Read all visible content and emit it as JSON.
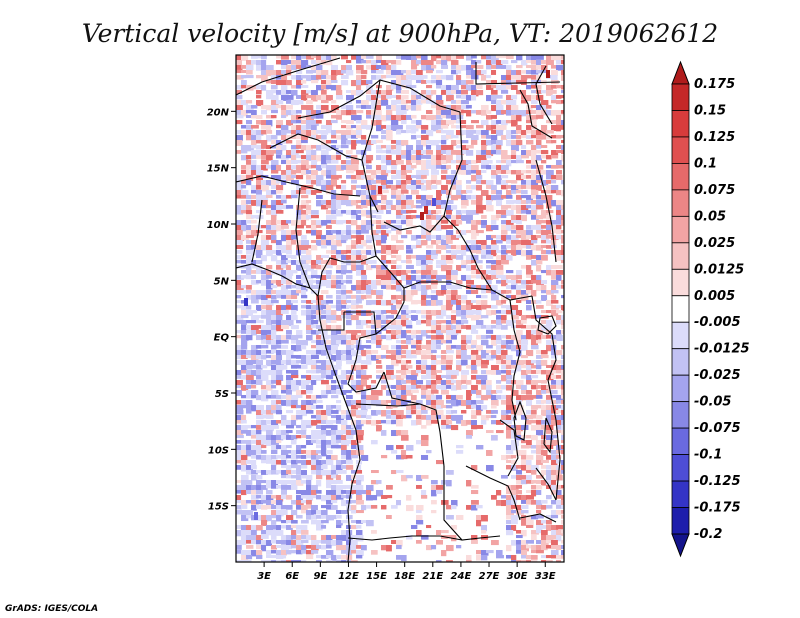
{
  "chart_data": {
    "type": "heatmap",
    "title": "Vertical velocity [m/s] at 900hPa, VT: 2019062612",
    "xlabel": "",
    "ylabel": "",
    "x_ticks": [
      "3E",
      "6E",
      "9E",
      "12E",
      "15E",
      "18E",
      "21E",
      "24E",
      "27E",
      "30E",
      "33E"
    ],
    "y_ticks": [
      "20N",
      "15N",
      "10N",
      "5N",
      "EQ",
      "5S",
      "10S",
      "15S"
    ],
    "lon_range": [
      0,
      35
    ],
    "lat_range": [
      -20,
      25
    ],
    "colorbar_levels": [
      "0.175",
      "0.15",
      "0.125",
      "0.1",
      "0.075",
      "0.05",
      "0.025",
      "0.0125",
      "0.005",
      "-0.005",
      "-0.0125",
      "-0.025",
      "-0.05",
      "-0.075",
      "-0.1",
      "-0.125",
      "-0.175",
      "-0.2"
    ],
    "colorbar_colors": [
      "#b01c1c",
      "#c42828",
      "#d83c3c",
      "#e05050",
      "#e66a6a",
      "#ec8686",
      "#f2a4a4",
      "#f6c2c2",
      "#fadcdc",
      "#ffffff",
      "#dcdcfa",
      "#c2c2f4",
      "#a4a4ee",
      "#8888e6",
      "#6a6ae0",
      "#4e4ed6",
      "#3434c6",
      "#1e1eac",
      "#14148c"
    ]
  },
  "footer": {
    "credit": "GrADS: IGES/COLA"
  }
}
